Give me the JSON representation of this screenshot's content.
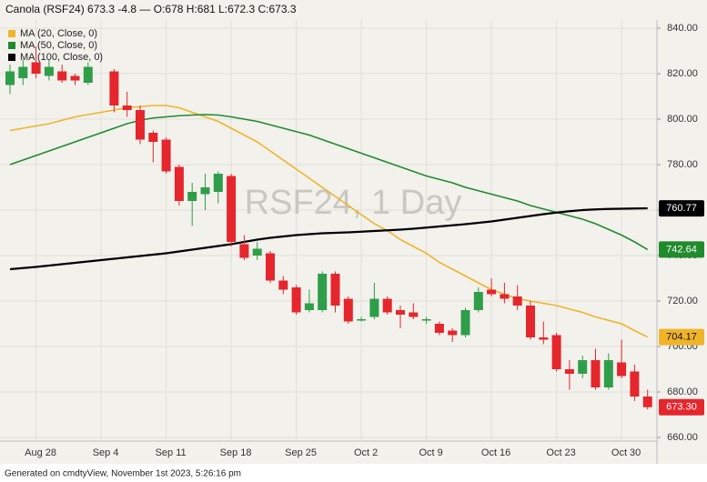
{
  "chart_data": {
    "type": "candlestick",
    "title": "Canola (RSF24) 673.3 -4.8 — O:678 H:681 L:672.3 C:673.3",
    "watermark": "RSF24, 1 Day",
    "footer": "Generated on cmdtyView, November 1st 2023, 5:26:16 pm",
    "categories": [
      null,
      null,
      "Aug 28",
      null,
      null,
      null,
      null,
      "Sep 4",
      null,
      null,
      null,
      null,
      "Sep 11",
      null,
      null,
      null,
      null,
      "Sep 18",
      null,
      null,
      null,
      null,
      "Sep 25",
      null,
      null,
      null,
      null,
      "Oct 2",
      null,
      null,
      null,
      null,
      "Oct 9",
      null,
      null,
      null,
      null,
      "Oct 16",
      null,
      null,
      null,
      null,
      "Oct 23",
      null,
      null,
      null,
      null,
      "Oct 30",
      null,
      null
    ],
    "open": [
      815,
      818,
      825,
      819,
      821,
      819,
      816,
      null,
      821,
      806,
      804,
      794,
      791,
      779,
      764,
      767,
      768,
      775,
      745,
      740,
      741,
      729,
      726,
      716,
      716,
      732,
      721,
      712,
      713,
      721,
      716,
      715,
      712,
      710,
      707,
      705,
      716,
      725,
      723,
      722,
      718,
      704,
      705,
      690,
      688,
      694,
      682,
      693,
      689,
      678
    ],
    "high": [
      824,
      826,
      832,
      826,
      824,
      820,
      825,
      null,
      822,
      812,
      806,
      795,
      792,
      780,
      772,
      776,
      777,
      776,
      749,
      746,
      742,
      731,
      727,
      725,
      733,
      733,
      722,
      713,
      728,
      722,
      718,
      719,
      713,
      711,
      708,
      717,
      726,
      730,
      728,
      727,
      720,
      711,
      706,
      694,
      696,
      699,
      697,
      703,
      692,
      681
    ],
    "low": [
      811,
      815,
      818,
      817,
      816,
      815,
      815,
      null,
      803,
      801,
      789,
      781,
      776,
      762,
      753,
      760,
      763,
      744,
      738,
      738,
      728,
      723,
      714,
      715,
      715,
      715,
      710,
      711,
      712,
      714,
      708,
      712,
      710,
      705,
      702,
      704,
      715,
      722,
      719,
      716,
      703,
      701,
      689,
      681,
      686,
      681,
      681,
      686,
      676,
      672.3
    ],
    "close": [
      821,
      823,
      820,
      823,
      817,
      817,
      823,
      null,
      806,
      804,
      791,
      790,
      777,
      764,
      768,
      770,
      776,
      746,
      739,
      743,
      729,
      725,
      715,
      719,
      732,
      718,
      711,
      712,
      721,
      715,
      714,
      713,
      712,
      706,
      705,
      716,
      724,
      723,
      721,
      718,
      704,
      703,
      690,
      688,
      694,
      682,
      694,
      687,
      678,
      673.3
    ],
    "last_price_label": "673.30",
    "up_color": "#2f9e4a",
    "down_color": "#e5262d",
    "series": [
      {
        "name": "MA (20, Close, 0)",
        "color": "#f0b429",
        "values": [
          795,
          796,
          797,
          798,
          799.5,
          801,
          802,
          803,
          804,
          805,
          805.5,
          806,
          806,
          805,
          803,
          801,
          799,
          796,
          793,
          790,
          786,
          782,
          778,
          774,
          770,
          766,
          762,
          758,
          754,
          751,
          747,
          744,
          741,
          737,
          734,
          731,
          728,
          725,
          723,
          721,
          720,
          719,
          718,
          716.5,
          715,
          713,
          711.5,
          710,
          707,
          704.17
        ]
      },
      {
        "name": "MA (50, Close, 0)",
        "color": "#1f8b2c",
        "values": [
          780,
          782,
          784,
          786,
          788,
          790,
          792,
          794,
          796,
          798,
          799.5,
          800.5,
          801,
          801.5,
          801.8,
          802,
          801.8,
          801,
          800,
          799,
          797.5,
          796,
          794.5,
          793,
          791,
          789,
          787,
          785,
          783,
          781,
          779,
          777,
          775,
          773.5,
          772,
          770,
          768.5,
          767,
          765.5,
          764,
          762,
          760.5,
          759,
          757.5,
          756,
          754,
          751.5,
          749,
          746,
          742.64
        ]
      },
      {
        "name": "MA (100, Close, 0)",
        "color": "#000000",
        "values": [
          734,
          734.5,
          735,
          735.6,
          736.2,
          736.8,
          737.4,
          738,
          738.6,
          739.2,
          739.8,
          740.4,
          741,
          741.8,
          742.6,
          743.4,
          744.2,
          745,
          746,
          747,
          747.8,
          748.4,
          749,
          749.4,
          749.8,
          750,
          750.2,
          750.5,
          750.8,
          751.1,
          751.4,
          751.8,
          752.3,
          752.8,
          753.3,
          753.8,
          754.4,
          755,
          755.8,
          756.6,
          757.4,
          758.2,
          758.9,
          759.5,
          760,
          760.3,
          760.5,
          760.6,
          760.7,
          760.77
        ]
      }
    ],
    "ylim": [
      658.4,
      843.6
    ],
    "yticks": [
      {
        "value": 660,
        "label": "660.00"
      },
      {
        "value": 680,
        "label": "680.00"
      },
      {
        "value": 700,
        "label": "700.00"
      },
      {
        "value": 720,
        "label": "720.00"
      },
      {
        "value": 740,
        "label": "740.00"
      },
      {
        "value": 760,
        "label": "760.00"
      },
      {
        "value": 780,
        "label": "780.00"
      },
      {
        "value": 800,
        "label": "800.00"
      },
      {
        "value": 820,
        "label": "820.00"
      },
      {
        "value": 840,
        "label": "840.00"
      }
    ],
    "grid": true
  }
}
